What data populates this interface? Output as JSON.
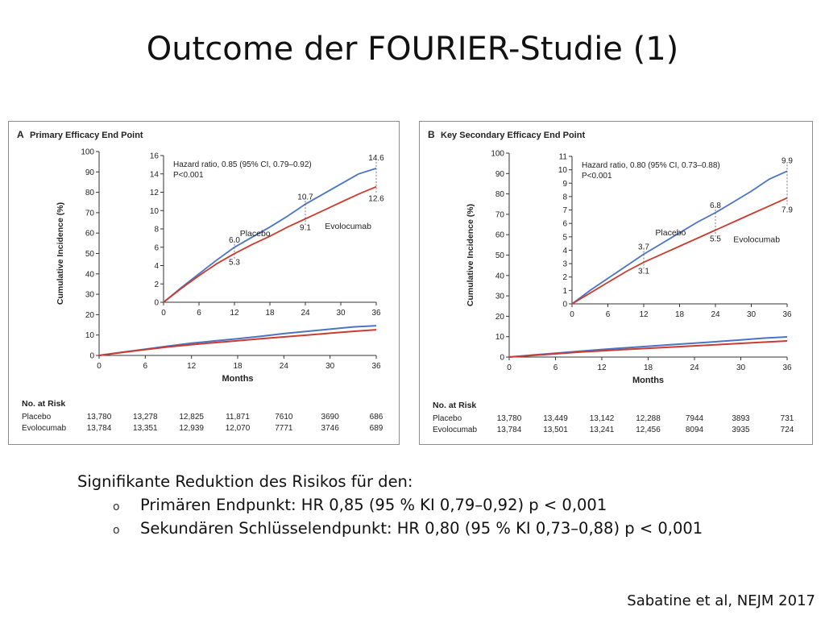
{
  "slide": {
    "title": "Outcome der FOURIER-Studie (1)",
    "bullets_heading": "Signifikante Reduktion des Risikos für den:",
    "bullets": [
      "Primären Endpunkt: HR 0,85 (95 % KI 0,79–0,92) p < 0,001",
      "Sekundären Schlüsselendpunkt: HR 0,80 (95 % KI 0,73–0,88) p < 0,001"
    ],
    "bullet_marker": "o",
    "citation": "Sabatine et al, NEJM 2017"
  },
  "colors": {
    "placebo": "#4a74c4",
    "evolocumab": "#cc3b30",
    "axis": "#333333"
  },
  "chart_data": [
    {
      "type": "line",
      "letter": "A",
      "title": "Primary Efficacy End Point",
      "xlabel": "Months",
      "ylabel": "Cumulative Incidence (%)",
      "xlim": [
        0,
        36
      ],
      "xticks": [
        0,
        6,
        12,
        18,
        24,
        30,
        36
      ],
      "ylim": [
        0,
        100
      ],
      "yticks": [
        0,
        10,
        20,
        30,
        40,
        50,
        60,
        70,
        80,
        90,
        100
      ],
      "grid": false,
      "series": [
        {
          "name": "Placebo",
          "key": "placebo",
          "x": [
            0,
            3,
            6,
            9,
            12,
            15,
            18,
            21,
            24,
            27,
            30,
            33,
            36
          ],
          "y": [
            0,
            1.6,
            3.1,
            4.6,
            6.0,
            7.1,
            8.2,
            9.4,
            10.7,
            11.8,
            12.9,
            14.0,
            14.6
          ]
        },
        {
          "name": "Evolocumab",
          "key": "evolocumab",
          "x": [
            0,
            3,
            6,
            9,
            12,
            15,
            18,
            21,
            24,
            27,
            30,
            33,
            36
          ],
          "y": [
            0,
            1.5,
            2.9,
            4.2,
            5.3,
            6.3,
            7.2,
            8.2,
            9.1,
            10.0,
            10.9,
            11.8,
            12.6
          ]
        }
      ],
      "inset": {
        "hazard_ratio": "Hazard ratio, 0.85 (95% CI, 0.79–0.92)",
        "p_value": "P<0.001",
        "xticks": [
          0,
          6,
          12,
          18,
          24,
          30,
          36
        ],
        "ylim": [
          0,
          16
        ],
        "yticks": [
          0,
          2,
          4,
          6,
          8,
          10,
          12,
          14,
          16
        ],
        "labels": [
          {
            "text": "6.0",
            "x": 12,
            "y": 6.0,
            "series": "placebo"
          },
          {
            "text": "5.3",
            "x": 12,
            "y": 5.3,
            "series": "evolocumab"
          },
          {
            "text": "10.7",
            "x": 24,
            "y": 10.7,
            "series": "placebo"
          },
          {
            "text": "9.1",
            "x": 24,
            "y": 9.1,
            "series": "evolocumab"
          },
          {
            "text": "14.6",
            "x": 36,
            "y": 14.6,
            "series": "placebo"
          },
          {
            "text": "12.6",
            "x": 36,
            "y": 12.6,
            "series": "evolocumab"
          }
        ],
        "series_labels": [
          {
            "text": "Placebo",
            "series": "placebo"
          },
          {
            "text": "Evolocumab",
            "series": "evolocumab"
          }
        ]
      },
      "risk_table": {
        "heading": "No. at Risk",
        "rows": [
          {
            "label": "Placebo",
            "values": [
              "13,780",
              "13,278",
              "12,825",
              "11,871",
              "7610",
              "3690",
              "686"
            ]
          },
          {
            "label": "Evolocumab",
            "values": [
              "13,784",
              "13,351",
              "12,939",
              "12,070",
              "7771",
              "3746",
              "689"
            ]
          }
        ]
      }
    },
    {
      "type": "line",
      "letter": "B",
      "title": "Key Secondary Efficacy End Point",
      "xlabel": "Months",
      "ylabel": "Cumulative Incidence (%)",
      "xlim": [
        0,
        36
      ],
      "xticks": [
        0,
        6,
        12,
        18,
        24,
        30,
        36
      ],
      "ylim": [
        0,
        100
      ],
      "yticks": [
        0,
        10,
        20,
        30,
        40,
        50,
        60,
        70,
        80,
        90,
        100
      ],
      "grid": false,
      "series": [
        {
          "name": "Placebo",
          "key": "placebo",
          "x": [
            0,
            3,
            6,
            9,
            12,
            15,
            18,
            21,
            24,
            27,
            30,
            33,
            36
          ],
          "y": [
            0,
            1.0,
            1.9,
            2.8,
            3.7,
            4.5,
            5.3,
            6.1,
            6.8,
            7.6,
            8.4,
            9.3,
            9.9
          ]
        },
        {
          "name": "Evolocumab",
          "key": "evolocumab",
          "x": [
            0,
            3,
            6,
            9,
            12,
            15,
            18,
            21,
            24,
            27,
            30,
            33,
            36
          ],
          "y": [
            0,
            0.8,
            1.6,
            2.4,
            3.1,
            3.7,
            4.3,
            4.9,
            5.5,
            6.1,
            6.7,
            7.3,
            7.9
          ]
        }
      ],
      "inset": {
        "hazard_ratio": "Hazard ratio, 0.80 (95% CI, 0.73–0.88)",
        "p_value": "P<0.001",
        "xticks": [
          0,
          6,
          12,
          18,
          24,
          30,
          36
        ],
        "ylim": [
          0,
          11
        ],
        "yticks": [
          0,
          1,
          2,
          3,
          4,
          5,
          6,
          7,
          8,
          9,
          10,
          11
        ],
        "labels": [
          {
            "text": "3.7",
            "x": 12,
            "y": 3.7,
            "series": "placebo"
          },
          {
            "text": "3.1",
            "x": 12,
            "y": 3.1,
            "series": "evolocumab"
          },
          {
            "text": "6.8",
            "x": 24,
            "y": 6.8,
            "series": "placebo"
          },
          {
            "text": "5.5",
            "x": 24,
            "y": 5.5,
            "series": "evolocumab"
          },
          {
            "text": "9.9",
            "x": 36,
            "y": 9.9,
            "series": "placebo"
          },
          {
            "text": "7.9",
            "x": 36,
            "y": 7.9,
            "series": "evolocumab"
          }
        ],
        "series_labels": [
          {
            "text": "Placebo",
            "series": "placebo"
          },
          {
            "text": "Evolocumab",
            "series": "evolocumab"
          }
        ]
      },
      "risk_table": {
        "heading": "No. at Risk",
        "rows": [
          {
            "label": "Placebo",
            "values": [
              "13,780",
              "13,449",
              "13,142",
              "12,288",
              "7944",
              "3893",
              "731"
            ]
          },
          {
            "label": "Evolocumab",
            "values": [
              "13,784",
              "13,501",
              "13,241",
              "12,456",
              "8094",
              "3935",
              "724"
            ]
          }
        ]
      }
    }
  ]
}
